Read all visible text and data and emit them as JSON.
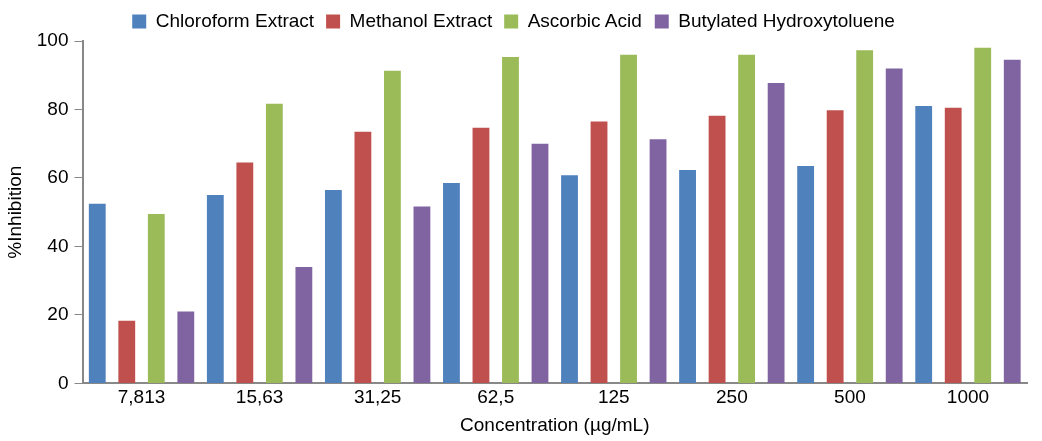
{
  "chart_data": {
    "type": "bar",
    "xlabel": "Concentration (µg/mL)",
    "ylabel": "%Inhibition",
    "categories": [
      "7,813",
      "15,63",
      "31,25",
      "62,5",
      "125",
      "250",
      "500",
      "1000"
    ],
    "series": [
      {
        "name": "Chloroform Extract",
        "color": "#4f81bd",
        "values": [
          52.5,
          55,
          56.5,
          58.5,
          60.8,
          62.3,
          63.5,
          81
        ]
      },
      {
        "name": "Methanol Extract",
        "color": "#c0504d",
        "values": [
          18.3,
          64.5,
          73.5,
          74.7,
          76.5,
          78.2,
          79.8,
          80.5
        ]
      },
      {
        "name": "Ascorbic Acid",
        "color": "#9bbb59",
        "values": [
          49.5,
          81.7,
          91.3,
          95.3,
          96,
          96,
          97.3,
          98
        ]
      },
      {
        "name": "Butylated Hydroxytoluene",
        "color": "#8064a2",
        "values": [
          21,
          34,
          51.7,
          70,
          71.3,
          87.7,
          92,
          94.5
        ]
      }
    ],
    "ylim": [
      0,
      100
    ],
    "yticks": [
      0,
      20,
      40,
      60,
      80,
      100
    ],
    "grid": false,
    "legend": "top"
  }
}
